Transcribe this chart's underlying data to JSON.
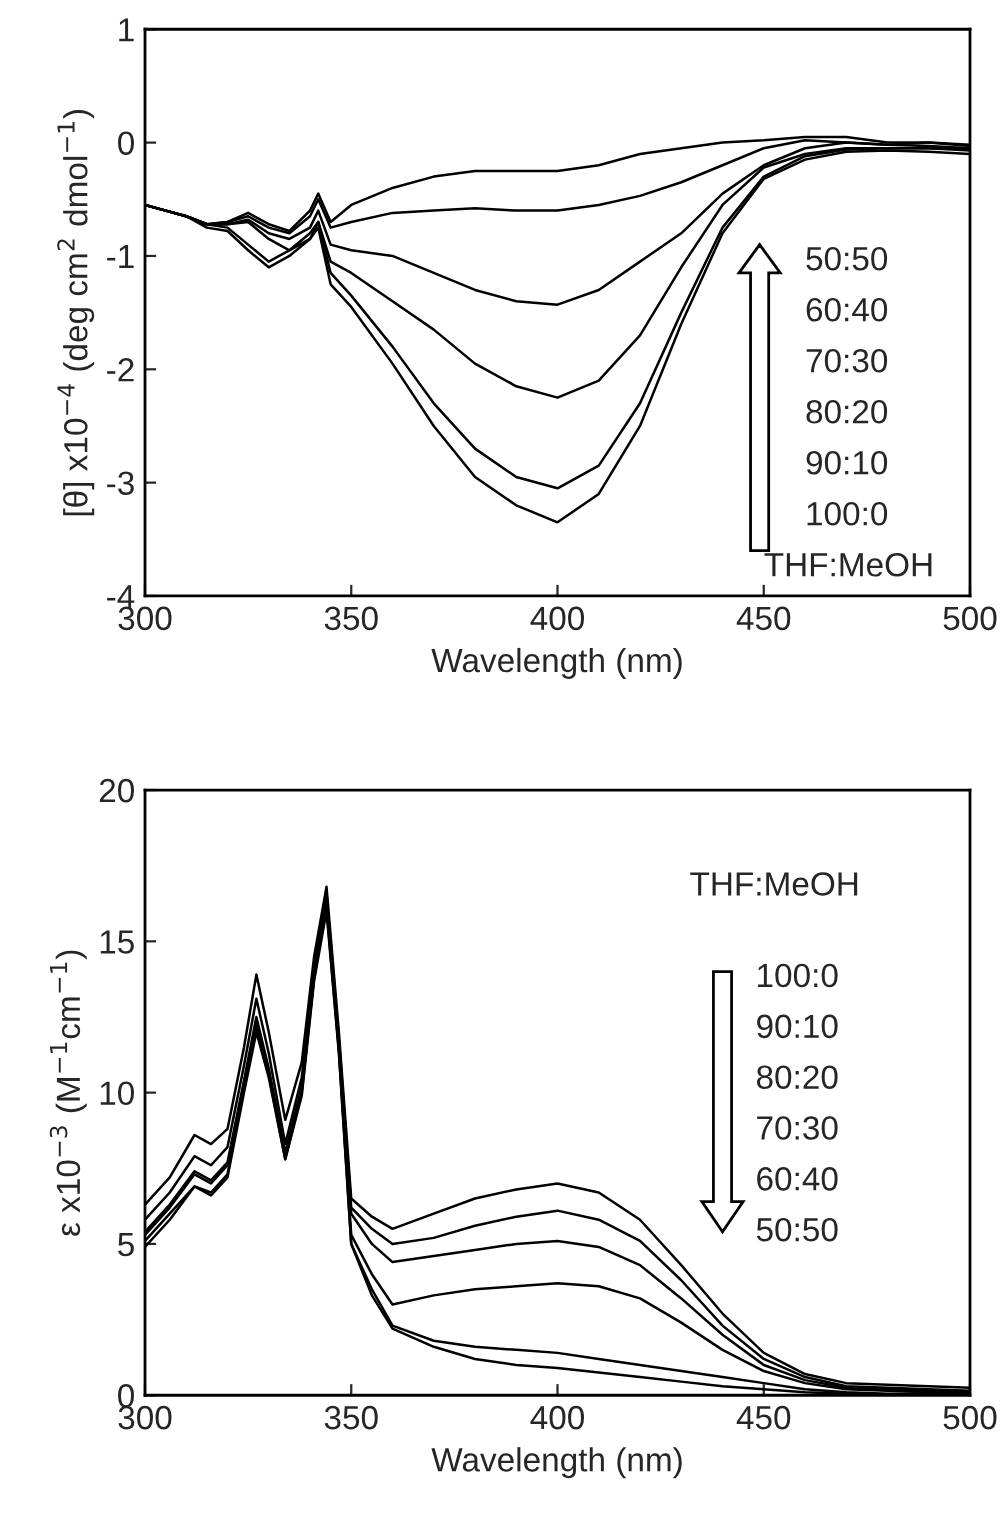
{
  "chart_data": [
    {
      "type": "line",
      "xlabel": "Wavelength (nm)",
      "ylabel": "[θ] x10$^{−4}$ (deg cm$^{2}$ dmol$^{−1}$)",
      "x": [
        300,
        305,
        310,
        315,
        320,
        325,
        330,
        335,
        340,
        342,
        345,
        350,
        360,
        370,
        380,
        390,
        400,
        410,
        420,
        430,
        440,
        450,
        460,
        470,
        480,
        490,
        500
      ],
      "series": [
        {
          "color": "#000000",
          "values": [
            -0.55,
            -0.6,
            -0.65,
            -0.72,
            -0.7,
            -0.62,
            -0.72,
            -0.78,
            -0.6,
            -0.45,
            -0.7,
            -0.55,
            -0.4,
            -0.3,
            -0.25,
            -0.25,
            -0.25,
            -0.2,
            -0.1,
            -0.05,
            0.0,
            0.02,
            0.05,
            0.05,
            0.0,
            0.0,
            -0.02
          ]
        },
        {
          "color": "#000000",
          "values": [
            -0.55,
            -0.6,
            -0.65,
            -0.72,
            -0.7,
            -0.65,
            -0.75,
            -0.8,
            -0.65,
            -0.5,
            -0.75,
            -0.7,
            -0.62,
            -0.6,
            -0.58,
            -0.6,
            -0.6,
            -0.55,
            -0.47,
            -0.35,
            -0.2,
            -0.05,
            0.02,
            0.0,
            -0.02,
            0.0,
            -0.03
          ]
        },
        {
          "color": "#000000",
          "values": [
            -0.55,
            -0.6,
            -0.65,
            -0.72,
            -0.72,
            -0.68,
            -0.8,
            -0.85,
            -0.75,
            -0.6,
            -0.9,
            -0.95,
            -1.0,
            -1.15,
            -1.3,
            -1.4,
            -1.43,
            -1.3,
            -1.05,
            -0.8,
            -0.45,
            -0.2,
            -0.05,
            0.0,
            -0.02,
            -0.03,
            -0.05
          ]
        },
        {
          "color": "#000000",
          "values": [
            -0.55,
            -0.6,
            -0.65,
            -0.72,
            -0.72,
            -0.7,
            -0.85,
            -0.95,
            -0.85,
            -0.7,
            -1.05,
            -1.15,
            -1.4,
            -1.65,
            -1.95,
            -2.15,
            -2.25,
            -2.1,
            -1.7,
            -1.1,
            -0.55,
            -0.22,
            -0.1,
            -0.05,
            -0.05,
            -0.05,
            -0.05
          ]
        },
        {
          "color": "#000000",
          "values": [
            -0.55,
            -0.6,
            -0.65,
            -0.72,
            -0.75,
            -0.9,
            -1.05,
            -0.95,
            -0.8,
            -0.7,
            -1.15,
            -1.35,
            -1.8,
            -2.3,
            -2.7,
            -2.95,
            -3.05,
            -2.85,
            -2.3,
            -1.5,
            -0.75,
            -0.3,
            -0.12,
            -0.06,
            -0.05,
            -0.05,
            -0.07
          ]
        },
        {
          "color": "#000000",
          "values": [
            -0.55,
            -0.6,
            -0.65,
            -0.75,
            -0.78,
            -0.95,
            -1.1,
            -1.0,
            -0.85,
            -0.75,
            -1.25,
            -1.45,
            -1.95,
            -2.5,
            -2.95,
            -3.2,
            -3.35,
            -3.1,
            -2.5,
            -1.6,
            -0.8,
            -0.32,
            -0.15,
            -0.08,
            -0.07,
            -0.08,
            -0.1
          ]
        }
      ],
      "xlim": [
        300,
        500
      ],
      "xticks": [
        300,
        350,
        400,
        450,
        500
      ],
      "ylim": [
        -4,
        1
      ],
      "yticks": [
        -4,
        -3,
        -2,
        -1,
        0,
        1
      ],
      "grid": false,
      "legend": false,
      "marker": "none",
      "line_style": "solid",
      "annotations": [
        "50:50",
        "60:40",
        "70:30",
        "80:20",
        "90:10",
        "100:0",
        "THF:MeOH"
      ]
    },
    {
      "type": "line",
      "xlabel": "Wavelength (nm)",
      "ylabel": "ε x10$^{−3}$ (M$^{−1}$cm$^{−1}$)",
      "x": [
        300,
        306,
        312,
        316,
        320,
        324,
        327,
        330,
        334,
        338,
        341,
        344,
        347,
        350,
        355,
        360,
        370,
        380,
        390,
        400,
        410,
        420,
        430,
        440,
        450,
        460,
        470,
        480,
        490,
        500
      ],
      "series": [
        {
          "color": "#000000",
          "values": [
            6.3,
            7.2,
            8.6,
            8.3,
            8.8,
            11.5,
            13.9,
            12.0,
            9.1,
            11.0,
            14.5,
            16.8,
            12.0,
            6.5,
            5.9,
            5.5,
            6.0,
            6.5,
            6.8,
            7.0,
            6.7,
            5.8,
            4.3,
            2.7,
            1.4,
            0.7,
            0.4,
            0.35,
            0.3,
            0.25
          ]
        },
        {
          "color": "#000000",
          "values": [
            5.8,
            6.7,
            7.9,
            7.6,
            8.2,
            10.9,
            13.1,
            11.3,
            8.3,
            10.5,
            14.2,
            16.6,
            11.8,
            6.2,
            5.5,
            5.0,
            5.2,
            5.6,
            5.9,
            6.1,
            5.8,
            5.1,
            3.8,
            2.3,
            1.2,
            0.6,
            0.3,
            0.25,
            0.2,
            0.15
          ]
        },
        {
          "color": "#000000",
          "values": [
            5.4,
            6.3,
            7.4,
            7.1,
            7.7,
            10.4,
            12.5,
            10.8,
            8.0,
            10.2,
            14.0,
            16.5,
            11.6,
            6.0,
            5.0,
            4.4,
            4.6,
            4.8,
            5.0,
            5.1,
            4.9,
            4.3,
            3.2,
            2.0,
            1.0,
            0.5,
            0.25,
            0.2,
            0.15,
            0.1
          ]
        },
        {
          "color": "#000000",
          "values": [
            5.3,
            6.2,
            7.3,
            7.0,
            7.6,
            10.3,
            12.3,
            10.7,
            8.0,
            10.1,
            13.9,
            16.3,
            11.5,
            5.3,
            4.0,
            3.0,
            3.3,
            3.5,
            3.6,
            3.7,
            3.6,
            3.2,
            2.4,
            1.5,
            0.8,
            0.4,
            0.2,
            0.15,
            0.1,
            0.1
          ]
        },
        {
          "color": "#000000",
          "values": [
            5.1,
            6.0,
            6.9,
            6.7,
            7.3,
            10.1,
            12.2,
            10.6,
            7.8,
            10.0,
            13.8,
            16.1,
            11.4,
            5.0,
            3.5,
            2.3,
            1.8,
            1.6,
            1.5,
            1.4,
            1.2,
            1.0,
            0.8,
            0.6,
            0.4,
            0.2,
            0.1,
            0.05,
            0.05,
            0.05
          ]
        },
        {
          "color": "#000000",
          "values": [
            4.9,
            5.8,
            6.9,
            6.6,
            7.2,
            10.0,
            12.0,
            10.5,
            7.8,
            9.9,
            13.7,
            16.0,
            11.3,
            5.0,
            3.3,
            2.2,
            1.6,
            1.2,
            1.0,
            0.9,
            0.75,
            0.6,
            0.45,
            0.3,
            0.2,
            0.1,
            0.05,
            0.03,
            0.02,
            0.02
          ]
        }
      ],
      "xlim": [
        300,
        500
      ],
      "xticks": [
        300,
        350,
        400,
        450,
        500
      ],
      "ylim": [
        0,
        20
      ],
      "yticks": [
        0,
        5,
        10,
        15,
        20
      ],
      "grid": false,
      "legend": false,
      "marker": "none",
      "line_style": "solid",
      "annotations": [
        "THF:MeOH",
        "100:0",
        "90:10",
        "80:20",
        "70:30",
        "60:40",
        "50:50"
      ]
    }
  ]
}
